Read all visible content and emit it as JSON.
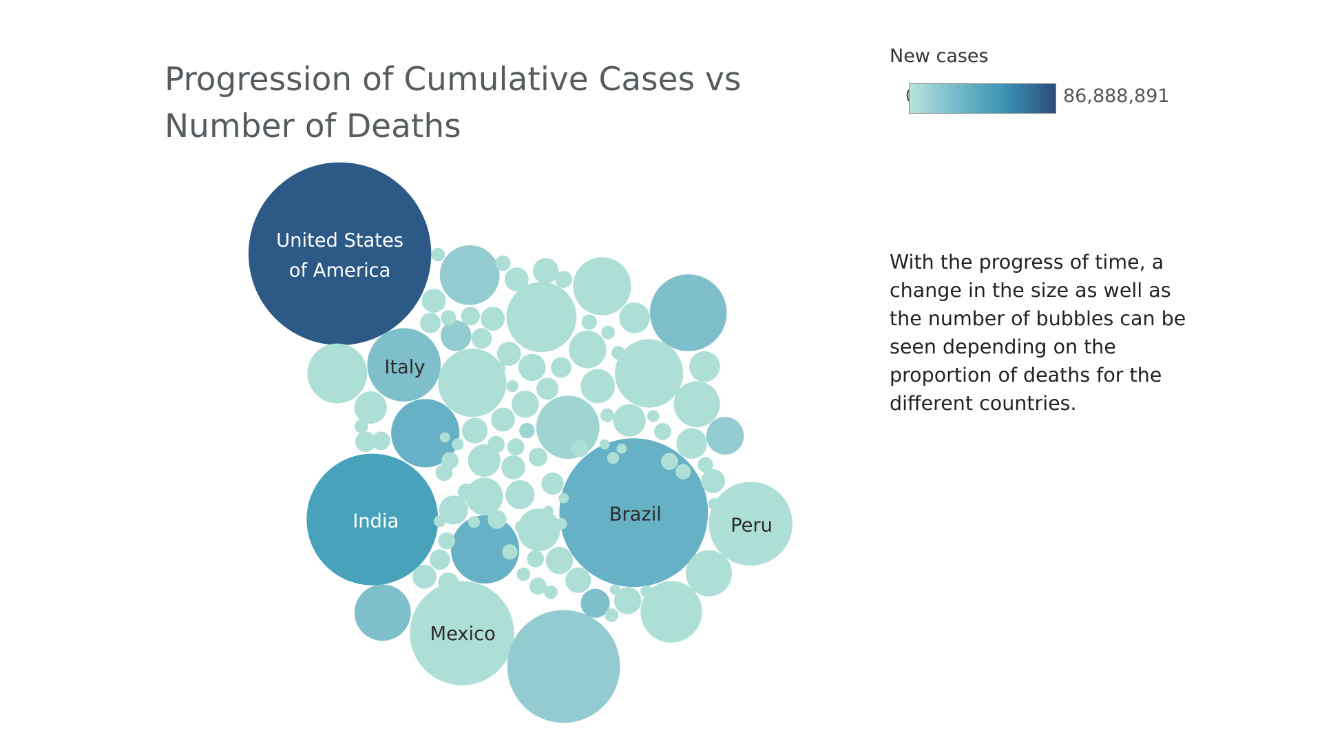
{
  "title": "Progression of Cumulative Cases vs Number of Deaths",
  "legend": {
    "title": "New cases",
    "min_label": "0",
    "max_label": "86,888,891",
    "colors": [
      "#b8e4dc",
      "#6fb6c7",
      "#3b93b3",
      "#2b4d7c"
    ]
  },
  "description": "With the progress of time, a change in the size as well as the number of bubbles can be seen depending on the proportion of deaths for the different countries.",
  "chart_data": {
    "type": "bubble",
    "color_measure": "New cases",
    "size_measure": "",
    "labeled_bubbles": [
      {
        "label": "United States of America",
        "label_lines": [
          "United States",
          "of America"
        ]
      },
      {
        "label": "Italy",
        "label_lines": [
          "Italy"
        ]
      },
      {
        "label": "India",
        "label_lines": [
          "India"
        ]
      },
      {
        "label": "Brazil",
        "label_lines": [
          "Brazil"
        ]
      },
      {
        "label": "Peru",
        "label_lines": [
          "Peru"
        ]
      },
      {
        "label": "Mexico",
        "label_lines": [
          "Mexico"
        ]
      }
    ]
  }
}
